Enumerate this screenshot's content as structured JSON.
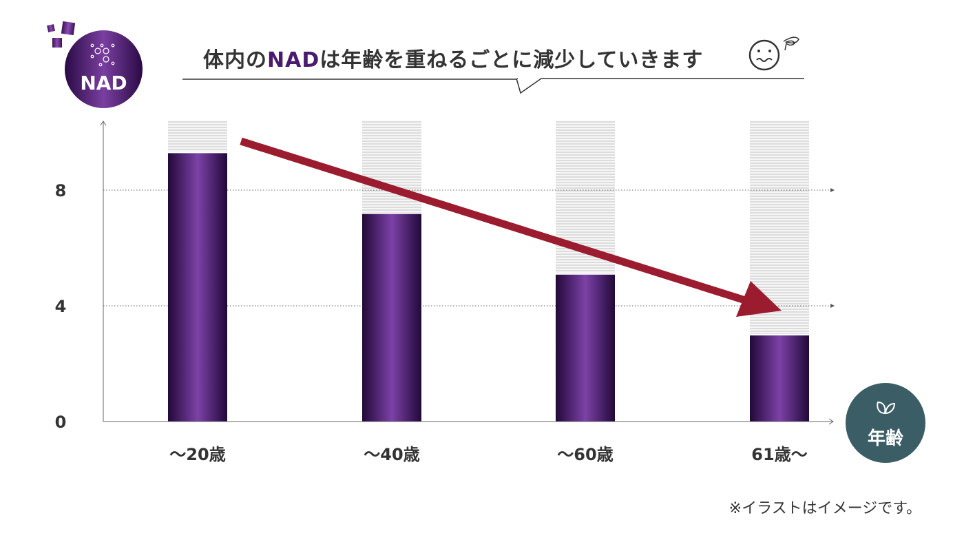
{
  "title": {
    "pre": "体内の",
    "highlight": "NAD",
    "post": "は年齢を重ねるごとに減少していきます"
  },
  "badges": {
    "nad": "NAD",
    "age": "年齢"
  },
  "note": "※イラストはイメージです。",
  "colors": {
    "bar": "#5a2a80",
    "arrow": "#9a1c2e",
    "age_badge": "#3b5e66",
    "highlight": "#4a1a6e"
  },
  "icons": {
    "nad": "molecule-icon",
    "age": "leaf-icon",
    "face": "worried-face-icon"
  },
  "chart_data": {
    "type": "bar",
    "categories": [
      "〜20歳",
      "〜40歳",
      "〜60歳",
      "61歳〜"
    ],
    "values": [
      9.3,
      7.2,
      5.1,
      3.0
    ],
    "background_max": 10.4,
    "yticks": [
      0,
      4,
      8
    ],
    "ylim": [
      0,
      10.4
    ],
    "grid": true,
    "trend": "decreasing"
  }
}
